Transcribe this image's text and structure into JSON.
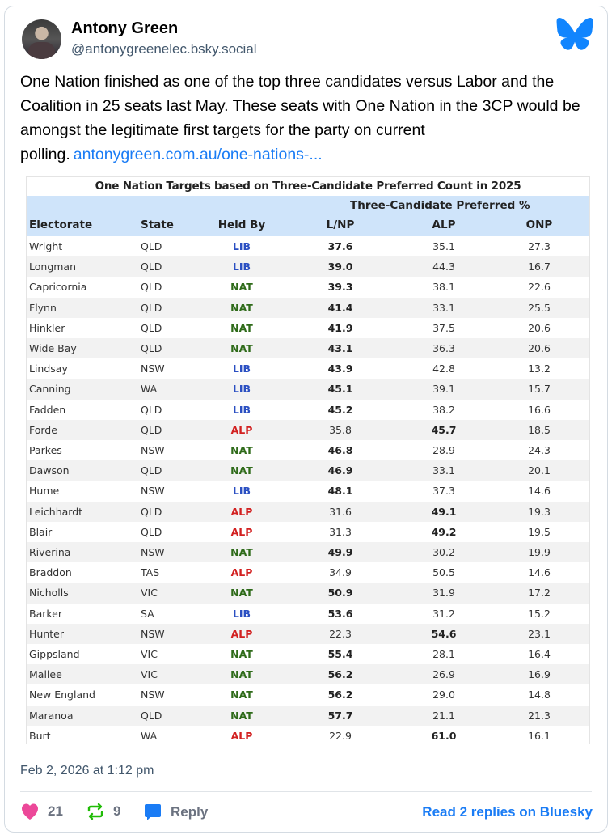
{
  "post": {
    "author_name": "Antony Green",
    "author_handle": "@antonygreenelec.bsky.social",
    "text": "One Nation finished as one of the top three candidates versus Labor and the Coalition in 25 seats last May. These seats with One Nation in the 3CP would be amongst the legitimate first targets for the party on current polling.",
    "link_text": "antonygreen.com.au/one-nations-...",
    "timestamp": "Feb 2, 2026 at 1:12 pm"
  },
  "table": {
    "title": "One Nation Targets based on Three-Candidate Preferred Count in 2025",
    "group_header": "Three-Candidate Preferred %",
    "columns": [
      "Electorate",
      "State",
      "Held By",
      "L/NP",
      "ALP",
      "ONP"
    ],
    "party_colors": {
      "LIB": "#2a4fc2",
      "NAT": "#2f6b1a",
      "ALP": "#d22020"
    },
    "rows": [
      {
        "electorate": "Wright",
        "state": "QLD",
        "held": "LIB",
        "lnp": "37.6",
        "alp": "35.1",
        "onp": "27.3",
        "bold": "lnp"
      },
      {
        "electorate": "Longman",
        "state": "QLD",
        "held": "LIB",
        "lnp": "39.0",
        "alp": "44.3",
        "onp": "16.7",
        "bold": "lnp"
      },
      {
        "electorate": "Capricornia",
        "state": "QLD",
        "held": "NAT",
        "lnp": "39.3",
        "alp": "38.1",
        "onp": "22.6",
        "bold": "lnp"
      },
      {
        "electorate": "Flynn",
        "state": "QLD",
        "held": "NAT",
        "lnp": "41.4",
        "alp": "33.1",
        "onp": "25.5",
        "bold": "lnp"
      },
      {
        "electorate": "Hinkler",
        "state": "QLD",
        "held": "NAT",
        "lnp": "41.9",
        "alp": "37.5",
        "onp": "20.6",
        "bold": "lnp"
      },
      {
        "electorate": "Wide Bay",
        "state": "QLD",
        "held": "NAT",
        "lnp": "43.1",
        "alp": "36.3",
        "onp": "20.6",
        "bold": "lnp"
      },
      {
        "electorate": "Lindsay",
        "state": "NSW",
        "held": "LIB",
        "lnp": "43.9",
        "alp": "42.8",
        "onp": "13.2",
        "bold": "lnp"
      },
      {
        "electorate": "Canning",
        "state": "WA",
        "held": "LIB",
        "lnp": "45.1",
        "alp": "39.1",
        "onp": "15.7",
        "bold": "lnp"
      },
      {
        "electorate": "Fadden",
        "state": "QLD",
        "held": "LIB",
        "lnp": "45.2",
        "alp": "38.2",
        "onp": "16.6",
        "bold": "lnp"
      },
      {
        "electorate": "Forde",
        "state": "QLD",
        "held": "ALP",
        "lnp": "35.8",
        "alp": "45.7",
        "onp": "18.5",
        "bold": "alp"
      },
      {
        "electorate": "Parkes",
        "state": "NSW",
        "held": "NAT",
        "lnp": "46.8",
        "alp": "28.9",
        "onp": "24.3",
        "bold": "lnp"
      },
      {
        "electorate": "Dawson",
        "state": "QLD",
        "held": "NAT",
        "lnp": "46.9",
        "alp": "33.1",
        "onp": "20.1",
        "bold": "lnp"
      },
      {
        "electorate": "Hume",
        "state": "NSW",
        "held": "LIB",
        "lnp": "48.1",
        "alp": "37.3",
        "onp": "14.6",
        "bold": "lnp"
      },
      {
        "electorate": "Leichhardt",
        "state": "QLD",
        "held": "ALP",
        "lnp": "31.6",
        "alp": "49.1",
        "onp": "19.3",
        "bold": "alp"
      },
      {
        "electorate": "Blair",
        "state": "QLD",
        "held": "ALP",
        "lnp": "31.3",
        "alp": "49.2",
        "onp": "19.5",
        "bold": "alp"
      },
      {
        "electorate": "Riverina",
        "state": "NSW",
        "held": "NAT",
        "lnp": "49.9",
        "alp": "30.2",
        "onp": "19.9",
        "bold": "lnp"
      },
      {
        "electorate": "Braddon",
        "state": "TAS",
        "held": "ALP",
        "lnp": "34.9",
        "alp": "50.5",
        "onp": "14.6",
        "bold": ""
      },
      {
        "electorate": "Nicholls",
        "state": "VIC",
        "held": "NAT",
        "lnp": "50.9",
        "alp": "31.9",
        "onp": "17.2",
        "bold": "lnp"
      },
      {
        "electorate": "Barker",
        "state": "SA",
        "held": "LIB",
        "lnp": "53.6",
        "alp": "31.2",
        "onp": "15.2",
        "bold": "lnp"
      },
      {
        "electorate": "Hunter",
        "state": "NSW",
        "held": "ALP",
        "lnp": "22.3",
        "alp": "54.6",
        "onp": "23.1",
        "bold": "alp"
      },
      {
        "electorate": "Gippsland",
        "state": "VIC",
        "held": "NAT",
        "lnp": "55.4",
        "alp": "28.1",
        "onp": "16.4",
        "bold": "lnp"
      },
      {
        "electorate": "Mallee",
        "state": "VIC",
        "held": "NAT",
        "lnp": "56.2",
        "alp": "26.9",
        "onp": "16.9",
        "bold": "lnp"
      },
      {
        "electorate": "New England",
        "state": "NSW",
        "held": "NAT",
        "lnp": "56.2",
        "alp": "29.0",
        "onp": "14.8",
        "bold": "lnp"
      },
      {
        "electorate": "Maranoa",
        "state": "QLD",
        "held": "NAT",
        "lnp": "57.7",
        "alp": "21.1",
        "onp": "21.3",
        "bold": "lnp"
      },
      {
        "electorate": "Burt",
        "state": "WA",
        "held": "ALP",
        "lnp": "22.9",
        "alp": "61.0",
        "onp": "16.1",
        "bold": "alp"
      }
    ]
  },
  "actions": {
    "likes": "21",
    "reposts": "9",
    "reply_label": "Reply",
    "read_replies": "Read 2 replies on Bluesky"
  },
  "colors": {
    "accent": "#1a7cf5",
    "like": "#ec4899",
    "repost": "#20bc07"
  }
}
